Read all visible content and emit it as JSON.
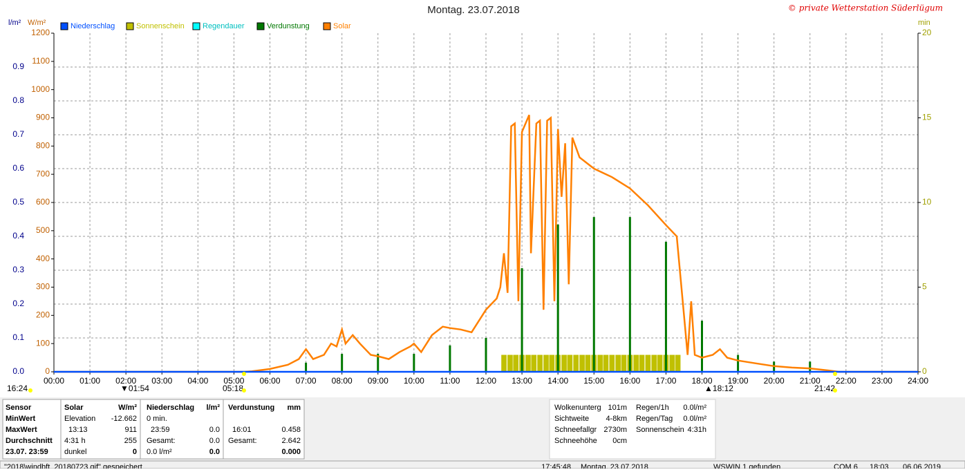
{
  "chart_data": {
    "type": "combo",
    "title": "Montag. 23.07.2018",
    "credit": "© private Wetterstation Süderlügum",
    "y_label": "l/m²",
    "y2_label": "W/m²",
    "y3_label": "min",
    "xlim": [
      0,
      24
    ],
    "xticks": [
      {
        "value": 0,
        "label": "00:00"
      },
      {
        "value": 1,
        "label": "01:00"
      },
      {
        "value": 2,
        "label": "02:00"
      },
      {
        "value": 3,
        "label": "03:00"
      },
      {
        "value": 4,
        "label": "04:00"
      },
      {
        "value": 5,
        "label": "05:00"
      },
      {
        "value": 6,
        "label": "06:00"
      },
      {
        "value": 7,
        "label": "07:00"
      },
      {
        "value": 8,
        "label": "08:00"
      },
      {
        "value": 9,
        "label": "09:00"
      },
      {
        "value": 10,
        "label": "10:00"
      },
      {
        "value": 11,
        "label": "11:00"
      },
      {
        "value": 12,
        "label": "12:00"
      },
      {
        "value": 13,
        "label": "13:00"
      },
      {
        "value": 14,
        "label": "14:00"
      },
      {
        "value": 15,
        "label": "15:00"
      },
      {
        "value": 16,
        "label": "16:00"
      },
      {
        "value": 17,
        "label": "17:00"
      },
      {
        "value": 18,
        "label": "18:00"
      },
      {
        "value": 19,
        "label": "19:00"
      },
      {
        "value": 20,
        "label": "20:00"
      },
      {
        "value": 21,
        "label": "21:00"
      },
      {
        "value": 22,
        "label": "22:00"
      },
      {
        "value": 23,
        "label": "23:00"
      },
      {
        "value": 24,
        "label": "24:00"
      }
    ],
    "ylim": [
      0,
      1
    ],
    "yticks": [
      {
        "value": 0,
        "label": "0.0"
      },
      0.1,
      0.2,
      0.3,
      0.4,
      0.5,
      0.6,
      0.7,
      0.8,
      0.9
    ],
    "y2lim": [
      0,
      1200
    ],
    "y2ticks": [
      0,
      100,
      200,
      300,
      400,
      500,
      600,
      700,
      800,
      900,
      1000,
      1100,
      1200
    ],
    "y3lim": [
      0,
      20
    ],
    "y3ticks": [
      0,
      5,
      10,
      15,
      20
    ],
    "grid": true,
    "annotations": [
      "16:24",
      "▼01:54",
      "05:18",
      "▲18:12",
      "21:42"
    ],
    "series": [
      {
        "name": "Niederschlag",
        "type": "line",
        "color": "#0050ff",
        "x": [
          0,
          24
        ],
        "values": [
          0,
          0
        ]
      },
      {
        "name": "Sonnenschein",
        "type": "bar",
        "axis": "y3",
        "color": "#c0c000",
        "x": [
          12.5,
          12.67,
          12.83,
          13,
          13.17,
          13.33,
          13.5,
          13.67,
          13.83,
          14,
          14.17,
          14.33,
          14.5,
          14.67,
          14.83,
          15,
          15.17,
          15.33,
          15.5,
          15.67,
          15.83,
          16,
          16.17,
          16.33,
          16.5,
          16.67,
          16.83,
          17,
          17.17,
          17.33
        ],
        "values": [
          1,
          1,
          1,
          1,
          1,
          1,
          1,
          1,
          1,
          1,
          1,
          1,
          1,
          1,
          1,
          1,
          1,
          1,
          1,
          1,
          1,
          1,
          1,
          1,
          1,
          1,
          1,
          1,
          1,
          1
        ]
      },
      {
        "name": "Regendauer",
        "type": "bar",
        "color": "#00ffff",
        "x": [],
        "values": []
      },
      {
        "name": "Verdunstung",
        "type": "bar",
        "color": "#007800",
        "x": [
          7,
          8,
          9,
          10,
          11,
          12,
          13,
          14,
          15,
          16,
          17,
          18,
          19,
          20,
          21
        ],
        "values": [
          0.027,
          0.053,
          0.053,
          0.053,
          0.078,
          0.1,
          0.306,
          0.435,
          0.457,
          0.457,
          0.384,
          0.151,
          0.05,
          0.03,
          0.03
        ]
      },
      {
        "name": "Solar",
        "type": "line",
        "axis": "y2",
        "color": "#ff8000",
        "x": [
          0,
          5.3,
          5.5,
          6,
          6.5,
          6.8,
          7,
          7.2,
          7.5,
          7.7,
          7.85,
          8,
          8.1,
          8.3,
          8.5,
          8.8,
          9,
          9.3,
          9.6,
          9.9,
          10,
          10.2,
          10.5,
          10.8,
          11,
          11.3,
          11.6,
          12,
          12.3,
          12.4,
          12.5,
          12.6,
          12.7,
          12.8,
          12.9,
          13,
          13.2,
          13.25,
          13.4,
          13.5,
          13.6,
          13.7,
          13.8,
          13.9,
          14,
          14.1,
          14.2,
          14.3,
          14.4,
          14.6,
          15,
          15.5,
          16,
          16.5,
          17,
          17.3,
          17.5,
          17.6,
          17.7,
          17.8,
          18,
          18.3,
          18.5,
          18.7,
          19,
          19.5,
          20,
          20.5,
          21,
          21.5,
          21.8,
          24
        ],
        "values": [
          0,
          0,
          2,
          10,
          25,
          45,
          80,
          45,
          60,
          100,
          90,
          150,
          100,
          130,
          100,
          60,
          55,
          45,
          70,
          90,
          100,
          70,
          130,
          160,
          155,
          150,
          140,
          220,
          260,
          300,
          420,
          280,
          870,
          880,
          250,
          850,
          910,
          420,
          880,
          890,
          220,
          890,
          900,
          250,
          860,
          620,
          810,
          310,
          830,
          760,
          720,
          690,
          650,
          590,
          520,
          480,
          200,
          60,
          250,
          60,
          50,
          60,
          80,
          50,
          40,
          30,
          20,
          15,
          12,
          5,
          0,
          0
        ]
      }
    ]
  },
  "table": {
    "rows": [
      [
        "Sensor",
        "Solar",
        "W/m²",
        "Niederschlag",
        "l/m²",
        "Verdunstung",
        "mm"
      ],
      [
        "MinWert",
        "Elevation",
        "-12.662",
        "0 min.",
        null,
        null,
        null
      ],
      [
        "MaxWert",
        "13:13",
        "911",
        "23:59",
        "0.0",
        "16:01",
        "0.458"
      ],
      [
        "Durchschnitt",
        "4:31 h",
        "255",
        "Gesamt:",
        "0.0",
        "Gesamt:",
        "2.642"
      ],
      [
        "23.07. 23:59",
        "dunkel",
        "0",
        "0.0 l/m²",
        "0.0",
        null,
        "0.000"
      ]
    ]
  },
  "side_panel": [
    [
      "Wolkenunterg",
      "101m"
    ],
    [
      "Sichtweite",
      "4-8km"
    ],
    [
      "Schneefallgr",
      "2730m"
    ],
    [
      "Schneehöhe",
      "0cm"
    ],
    [
      "Regen/1h",
      "0.0l/m²"
    ],
    [
      "Regen/Tag",
      "0.0l/m²"
    ],
    [
      "Sonnenschein",
      "4:31h"
    ]
  ],
  "status_bar": [
    "\"2018\\windbft_20180723.gif\" gespeichert",
    "17:45:48",
    "Montag, 23.07.2018",
    "WSWIN 1 gefunden",
    "COM 6",
    "18:03",
    "06.06.2019"
  ]
}
